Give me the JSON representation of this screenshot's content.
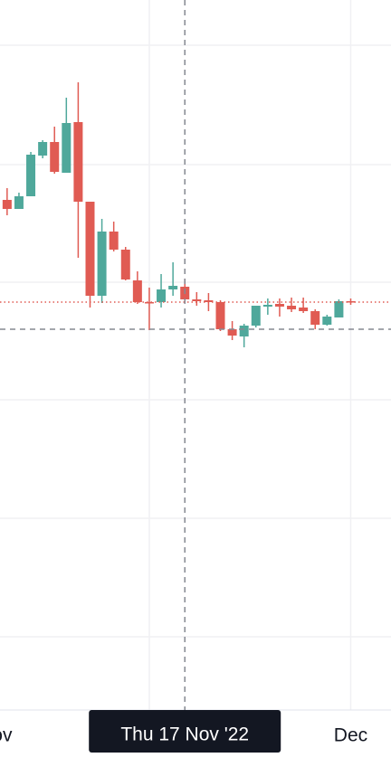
{
  "chart_data": {
    "type": "candlestick",
    "x": [
      2,
      3,
      4,
      5,
      6,
      7,
      8,
      9,
      10,
      11,
      12,
      13,
      14,
      15,
      16,
      17,
      18,
      19,
      20,
      21,
      22,
      23,
      24,
      25,
      26,
      27,
      28,
      29,
      30,
      31
    ],
    "open": [
      564,
      554,
      568,
      613,
      628,
      594,
      650,
      562,
      458,
      529,
      509,
      475,
      451,
      451,
      465,
      468,
      454,
      453,
      451,
      421,
      413,
      425,
      446,
      449,
      447,
      445,
      441,
      426,
      434,
      452
    ],
    "high": [
      577,
      572,
      617,
      630,
      645,
      677,
      694,
      562,
      543,
      540,
      512,
      485,
      467,
      482,
      495,
      477,
      462,
      461,
      453,
      430,
      427,
      447,
      455,
      455,
      456,
      456,
      443,
      437,
      454,
      455
    ],
    "low": [
      547,
      554,
      568,
      610,
      593,
      594,
      500,
      445,
      450,
      507,
      475,
      449,
      420,
      445,
      458,
      450,
      447,
      441,
      419,
      409,
      401,
      423,
      437,
      435,
      440,
      439,
      421,
      425,
      434,
      448
    ],
    "close": [
      554,
      568,
      614,
      628,
      595,
      649,
      562,
      458,
      529,
      509,
      476,
      451,
      450,
      465,
      469,
      454,
      452,
      451,
      421,
      414,
      425,
      447,
      448,
      446,
      443,
      441,
      426,
      435,
      452,
      451
    ],
    "up_color": "#4fa89b",
    "down_color": "#e05b53",
    "xlim": [
      1.4,
      34.4
    ],
    "xticks": [
      {
        "value": 1,
        "label": "Nov"
      },
      {
        "value": 31,
        "label": "Dec"
      }
    ],
    "xgrid": [
      14,
      31
    ],
    "ylim": [
      0,
      785
    ],
    "yticks": [
      81,
      212,
      343,
      473,
      603,
      735
    ],
    "grid": true,
    "crosshair": {
      "x": {
        "value": 17,
        "label": "Thu 17 Nov '22"
      },
      "y": 421
    }
  }
}
